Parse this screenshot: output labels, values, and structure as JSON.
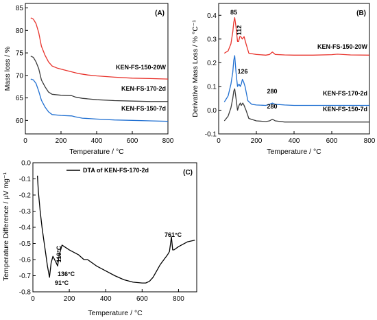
{
  "chart_data": [
    {
      "panel_label": "(A)",
      "type": "line",
      "xlabel": "Temperature / °C",
      "ylabel": "Mass loss / %",
      "xlim": [
        0,
        800
      ],
      "ylim": [
        57,
        86
      ],
      "xticks": [
        0,
        200,
        400,
        600,
        800
      ],
      "yticks": [
        60,
        65,
        70,
        75,
        80,
        85
      ],
      "series": [
        {
          "name": "KEN-FS-150-20W",
          "color": "#e8322b",
          "x": [
            30,
            45,
            60,
            75,
            90,
            110,
            130,
            150,
            180,
            220,
            260,
            300,
            350,
            400,
            500,
            600,
            700,
            800
          ],
          "y": [
            82.8,
            82.5,
            81.5,
            79.5,
            76.5,
            74.5,
            73.0,
            72.1,
            71.6,
            71.2,
            70.8,
            70.4,
            70.1,
            69.9,
            69.6,
            69.4,
            69.3,
            69.2
          ]
        },
        {
          "name": "KEN-FS-170-2d",
          "color": "#3a3a3a",
          "x": [
            30,
            45,
            60,
            75,
            90,
            110,
            130,
            150,
            200,
            260,
            280,
            320,
            400,
            500,
            600,
            700,
            800
          ],
          "y": [
            74.3,
            74.0,
            73.0,
            71.5,
            69.0,
            67.5,
            66.3,
            65.8,
            65.6,
            65.5,
            65.2,
            64.9,
            64.6,
            64.4,
            64.3,
            64.2,
            64.2
          ]
        },
        {
          "name": "KEN-FS-150-7d",
          "color": "#1f6fd1",
          "x": [
            30,
            45,
            60,
            75,
            90,
            110,
            130,
            150,
            200,
            260,
            280,
            320,
            400,
            500,
            600,
            700,
            800
          ],
          "y": [
            69.2,
            69.0,
            68.2,
            66.5,
            64.5,
            63.0,
            61.9,
            61.3,
            61.1,
            61.0,
            60.8,
            60.5,
            60.3,
            60.1,
            60.0,
            59.9,
            59.8
          ]
        }
      ]
    },
    {
      "panel_label": "(B)",
      "type": "line",
      "xlabel": "Temperature / °C",
      "ylabel": "Derivative Mass Loss / % °C⁻¹",
      "xlim": [
        0,
        800
      ],
      "ylim": [
        -0.1,
        0.45
      ],
      "xticks": [
        0,
        200,
        400,
        600,
        800
      ],
      "yticks": [
        -0.1,
        0.0,
        0.1,
        0.2,
        0.3,
        0.4
      ],
      "annotations": [
        "85",
        "112",
        "126",
        "280",
        "280"
      ],
      "series": [
        {
          "name": "KEN-FS-150-20W",
          "color": "#e8322b",
          "x": [
            30,
            50,
            65,
            75,
            80,
            85,
            92,
            100,
            106,
            112,
            118,
            125,
            135,
            145,
            160,
            200,
            250,
            270,
            285,
            300,
            350,
            400,
            500,
            600,
            630,
            700,
            800
          ],
          "y": [
            0.24,
            0.25,
            0.28,
            0.33,
            0.37,
            0.39,
            0.35,
            0.29,
            0.29,
            0.31,
            0.31,
            0.3,
            0.31,
            0.28,
            0.24,
            0.235,
            0.232,
            0.235,
            0.245,
            0.235,
            0.233,
            0.232,
            0.232,
            0.234,
            0.236,
            0.233,
            0.232
          ]
        },
        {
          "name": "KEN-FS-170-2d",
          "color": "#1f6fd1",
          "x": [
            30,
            50,
            65,
            75,
            80,
            85,
            92,
            100,
            108,
            115,
            120,
            126,
            132,
            140,
            155,
            175,
            200,
            250,
            270,
            285,
            300,
            350,
            400,
            500,
            600,
            700,
            800
          ],
          "y": [
            0.035,
            0.06,
            0.11,
            0.16,
            0.21,
            0.23,
            0.16,
            0.1,
            0.11,
            0.1,
            0.11,
            0.13,
            0.12,
            0.1,
            0.04,
            0.025,
            0.022,
            0.02,
            0.025,
            0.03,
            0.025,
            0.022,
            0.02,
            0.02,
            0.02,
            0.02,
            0.02
          ]
        },
        {
          "name": "KEN-FS-150-7d",
          "color": "#3a3a3a",
          "x": [
            30,
            50,
            65,
            75,
            80,
            85,
            92,
            100,
            108,
            115,
            120,
            128,
            135,
            145,
            160,
            200,
            250,
            270,
            285,
            300,
            350,
            400,
            500,
            600,
            700,
            800
          ],
          "y": [
            -0.045,
            -0.025,
            0.01,
            0.05,
            0.08,
            0.09,
            0.05,
            0.0,
            0.02,
            0.03,
            0.02,
            0.03,
            0.02,
            0.0,
            -0.035,
            -0.045,
            -0.048,
            -0.045,
            -0.038,
            -0.045,
            -0.05,
            -0.05,
            -0.05,
            -0.05,
            -0.05,
            -0.05
          ]
        }
      ]
    },
    {
      "panel_label": "(C)",
      "type": "line",
      "xlabel": "Temperature / °C",
      "ylabel": "Temperature Difference / µV mg⁻¹",
      "xlim": [
        0,
        900
      ],
      "ylim": [
        -0.8,
        0.0
      ],
      "xticks": [
        0,
        200,
        400,
        600,
        800
      ],
      "yticks": [
        -0.8,
        -0.7,
        -0.6,
        -0.5,
        -0.4,
        -0.3,
        -0.2,
        -0.1,
        0.0
      ],
      "legend": "DTA of KEN-FS-170-2d",
      "annotations": [
        "91°C",
        "119°C",
        "136°C",
        "761°C"
      ],
      "series": [
        {
          "name": "DTA of KEN-FS-170-2d",
          "color": "#000000",
          "x": [
            25,
            30,
            40,
            50,
            60,
            70,
            80,
            91,
            100,
            110,
            119,
            128,
            136,
            145,
            160,
            200,
            250,
            280,
            300,
            350,
            400,
            450,
            500,
            550,
            600,
            620,
            640,
            660,
            680,
            700,
            720,
            740,
            750,
            755,
            761,
            768,
            775,
            800,
            850,
            890
          ],
          "y": [
            -0.08,
            -0.18,
            -0.3,
            -0.4,
            -0.48,
            -0.56,
            -0.64,
            -0.71,
            -0.62,
            -0.58,
            -0.6,
            -0.62,
            -0.64,
            -0.57,
            -0.51,
            -0.54,
            -0.57,
            -0.6,
            -0.6,
            -0.64,
            -0.67,
            -0.7,
            -0.725,
            -0.74,
            -0.745,
            -0.745,
            -0.735,
            -0.71,
            -0.67,
            -0.63,
            -0.6,
            -0.57,
            -0.55,
            -0.51,
            -0.46,
            -0.54,
            -0.54,
            -0.52,
            -0.49,
            -0.48
          ]
        }
      ]
    }
  ]
}
